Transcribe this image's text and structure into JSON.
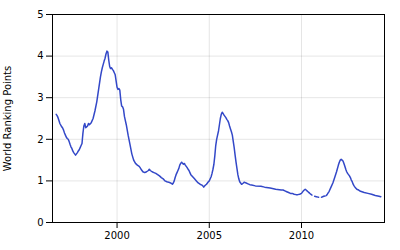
{
  "chart_data": {
    "type": "line",
    "ylabel": "World Ranking Points",
    "xlim": [
      1996.5,
      2014.5
    ],
    "ylim": [
      0,
      5
    ],
    "xticks": [
      2000,
      2005,
      2010
    ],
    "yticks": [
      0,
      1,
      2,
      3,
      4,
      5
    ],
    "grid": true,
    "color": "#3348c8",
    "series": [
      {
        "line_style": "solid",
        "x": [
          1996.7,
          1996.75,
          1996.8,
          1996.85,
          1996.9,
          1997.0,
          1997.05,
          1997.1,
          1997.15,
          1997.2,
          1997.25,
          1997.3,
          1997.35,
          1997.4,
          1997.45,
          1997.5,
          1997.55,
          1997.6,
          1997.65,
          1997.7,
          1997.75,
          1997.8,
          1997.85,
          1997.9,
          1997.95,
          1998.0,
          1998.05,
          1998.1,
          1998.12,
          1998.15,
          1998.2,
          1998.25,
          1998.3,
          1998.35,
          1998.4,
          1998.45,
          1998.5,
          1998.6,
          1998.7,
          1998.8,
          1998.9,
          1999.0,
          1999.1,
          1999.15,
          1999.2,
          1999.25,
          1999.3,
          1999.35,
          1999.4,
          1999.45,
          1999.5,
          1999.55,
          1999.6,
          1999.65,
          1999.7,
          1999.75,
          1999.8,
          1999.85,
          1999.9,
          2000.0,
          2000.05,
          2000.1,
          2000.15,
          2000.2,
          2000.25,
          2000.3,
          2000.35,
          2000.4,
          2000.45,
          2000.5,
          2000.6,
          2000.7,
          2000.8,
          2000.9,
          2001.0,
          2001.1,
          2001.2,
          2001.25,
          2001.3,
          2001.35,
          2001.4,
          2001.5,
          2001.6,
          2001.7,
          2001.75,
          2001.8,
          2001.9,
          2002.0,
          2002.1,
          2002.2,
          2002.3,
          2002.4,
          2002.5,
          2002.6,
          2002.7,
          2002.8,
          2002.9,
          2003.0,
          2003.05,
          2003.1,
          2003.15,
          2003.2,
          2003.25,
          2003.3,
          2003.35,
          2003.4,
          2003.45,
          2003.5,
          2003.55,
          2003.6,
          2003.65,
          2003.7,
          2003.75,
          2003.8,
          2003.85,
          2003.9,
          2003.95,
          2004.0,
          2004.1,
          2004.2,
          2004.3,
          2004.4,
          2004.5,
          2004.6,
          2004.65,
          2004.7,
          2004.75,
          2004.8,
          2004.85,
          2004.9,
          2004.95,
          2005.0,
          2005.05,
          2005.1,
          2005.15,
          2005.2,
          2005.25,
          2005.3,
          2005.35,
          2005.4,
          2005.45,
          2005.5,
          2005.55,
          2005.6,
          2005.65,
          2005.7,
          2005.75,
          2005.8,
          2005.85,
          2005.9,
          2005.95,
          2006.0,
          2006.05,
          2006.1,
          2006.15,
          2006.2,
          2006.25,
          2006.3,
          2006.35,
          2006.4,
          2006.45,
          2006.5,
          2006.55,
          2006.6,
          2006.65,
          2006.7,
          2006.75,
          2006.8,
          2006.85,
          2006.9,
          2006.95,
          2007.0,
          2007.1,
          2007.2,
          2007.3,
          2007.5,
          2007.8,
          2008.0,
          2008.3,
          2008.6,
          2008.9,
          2009.0,
          2009.1,
          2009.2,
          2009.3,
          2009.4,
          2009.5,
          2009.6,
          2009.7,
          2009.8,
          2009.9,
          2010.0,
          2010.05,
          2010.1,
          2010.15,
          2010.2,
          2010.25,
          2010.3,
          2010.35,
          2010.4
        ],
        "values": [
          2.6,
          2.57,
          2.52,
          2.45,
          2.38,
          2.3,
          2.27,
          2.22,
          2.15,
          2.1,
          2.05,
          2.02,
          2.0,
          1.95,
          1.88,
          1.82,
          1.78,
          1.72,
          1.68,
          1.65,
          1.62,
          1.65,
          1.68,
          1.72,
          1.75,
          1.8,
          1.85,
          1.9,
          2.0,
          2.15,
          2.32,
          2.38,
          2.28,
          2.3,
          2.32,
          2.38,
          2.35,
          2.4,
          2.5,
          2.68,
          2.9,
          3.2,
          3.5,
          3.62,
          3.72,
          3.8,
          3.88,
          3.95,
          4.05,
          4.12,
          4.1,
          3.9,
          3.75,
          3.7,
          3.72,
          3.68,
          3.65,
          3.6,
          3.55,
          3.25,
          3.2,
          3.22,
          3.18,
          2.95,
          2.8,
          2.78,
          2.72,
          2.55,
          2.45,
          2.35,
          2.1,
          1.88,
          1.65,
          1.5,
          1.42,
          1.38,
          1.35,
          1.32,
          1.28,
          1.25,
          1.22,
          1.2,
          1.22,
          1.25,
          1.28,
          1.25,
          1.22,
          1.2,
          1.18,
          1.15,
          1.12,
          1.08,
          1.05,
          1.0,
          0.98,
          0.97,
          0.95,
          0.92,
          0.95,
          1.0,
          1.08,
          1.15,
          1.2,
          1.25,
          1.3,
          1.38,
          1.42,
          1.45,
          1.42,
          1.4,
          1.42,
          1.38,
          1.35,
          1.32,
          1.28,
          1.25,
          1.2,
          1.15,
          1.1,
          1.05,
          1.0,
          0.95,
          0.92,
          0.9,
          0.88,
          0.85,
          0.88,
          0.9,
          0.92,
          0.95,
          0.98,
          1.0,
          1.05,
          1.1,
          1.18,
          1.28,
          1.4,
          1.6,
          1.85,
          2.0,
          2.1,
          2.2,
          2.35,
          2.5,
          2.6,
          2.65,
          2.62,
          2.58,
          2.55,
          2.52,
          2.48,
          2.45,
          2.4,
          2.32,
          2.25,
          2.18,
          2.1,
          1.95,
          1.8,
          1.62,
          1.45,
          1.3,
          1.15,
          1.05,
          0.98,
          0.95,
          0.92,
          0.93,
          0.95,
          0.97,
          0.96,
          0.95,
          0.93,
          0.91,
          0.9,
          0.88,
          0.87,
          0.85,
          0.83,
          0.8,
          0.78,
          0.78,
          0.76,
          0.74,
          0.72,
          0.7,
          0.7,
          0.68,
          0.67,
          0.67,
          0.68,
          0.7,
          0.73,
          0.76,
          0.78,
          0.8,
          0.78,
          0.76,
          0.74,
          0.72
        ]
      },
      {
        "line_style": "dashed",
        "x": [
          2010.4,
          2010.5,
          2010.6,
          2010.7,
          2010.8,
          2010.9,
          2011.0,
          2011.05,
          2011.1,
          2011.15,
          2011.2,
          2011.3,
          2011.35
        ],
        "values": [
          0.72,
          0.68,
          0.65,
          0.63,
          0.62,
          0.61,
          0.6,
          0.6,
          0.61,
          0.62,
          0.63,
          0.64,
          0.65
        ]
      },
      {
        "line_style": "solid",
        "x": [
          2011.35,
          2011.4,
          2011.5,
          2011.6,
          2011.7,
          2011.8,
          2011.9,
          2012.0,
          2012.05,
          2012.1,
          2012.15,
          2012.2,
          2012.25,
          2012.3,
          2012.35,
          2012.4,
          2012.45,
          2012.5,
          2012.55,
          2012.6,
          2012.65,
          2012.7,
          2012.75,
          2012.8,
          2012.85,
          2012.9,
          2013.0,
          2013.1,
          2013.2,
          2013.4,
          2013.6,
          2013.8,
          2014.0,
          2014.2,
          2014.3
        ],
        "values": [
          0.65,
          0.68,
          0.75,
          0.85,
          0.95,
          1.08,
          1.22,
          1.38,
          1.45,
          1.5,
          1.52,
          1.5,
          1.48,
          1.42,
          1.35,
          1.28,
          1.22,
          1.18,
          1.15,
          1.12,
          1.08,
          1.02,
          0.98,
          0.92,
          0.88,
          0.85,
          0.8,
          0.78,
          0.75,
          0.72,
          0.7,
          0.68,
          0.65,
          0.63,
          0.62
        ]
      }
    ]
  }
}
